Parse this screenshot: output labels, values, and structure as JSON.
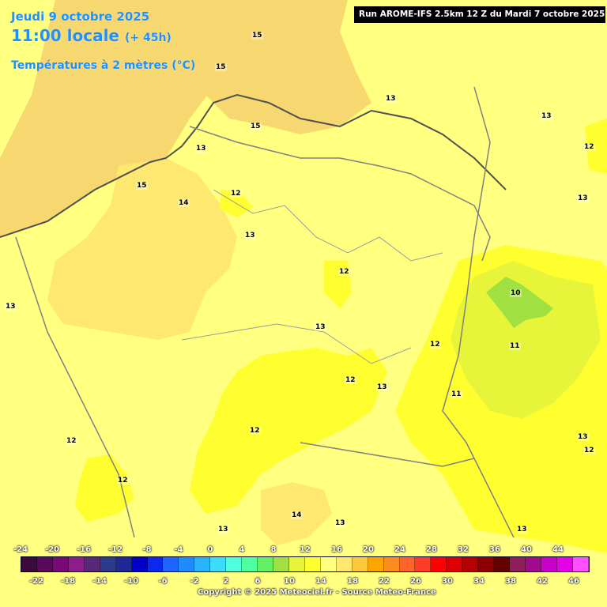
{
  "header": {
    "date": "Jeudi 9 octobre 2025",
    "time": "11:00 locale",
    "offset": "(+ 45h)",
    "parameter": "Températures à 2 mètres (°C)"
  },
  "run_info": "Run AROME-IFS 2.5km 12 Z du Mardi 7 octobre 2025",
  "copyright": "Copyright © 2025 Meteociel.fr - Source Meteo-France",
  "colors": {
    "t10": "#a0e040",
    "t11": "#e6f53a",
    "t12": "#ffff30",
    "t13": "#ffff80",
    "t14": "#ffe870",
    "t15": "#f7d870",
    "sea": "#ffff80",
    "coast": "#505050",
    "border": "#808080"
  },
  "contour_labels": [
    {
      "text": "15",
      "id": "lbl-15-a"
    },
    {
      "text": "15",
      "id": "lbl-15-b"
    },
    {
      "text": "13",
      "id": "lbl-13-a"
    },
    {
      "text": "15",
      "id": "lbl-15-c"
    },
    {
      "text": "13",
      "id": "lbl-13-b"
    },
    {
      "text": "13",
      "id": "lbl-13-c"
    },
    {
      "text": "12",
      "id": "lbl-12-a"
    },
    {
      "text": "15",
      "id": "lbl-15-d"
    },
    {
      "text": "12",
      "id": "lbl-12-b"
    },
    {
      "text": "14",
      "id": "lbl-14-a"
    },
    {
      "text": "13",
      "id": "lbl-13-d"
    },
    {
      "text": "13",
      "id": "lbl-13-e"
    },
    {
      "text": "12",
      "id": "lbl-12-c"
    },
    {
      "text": "13",
      "id": "lbl-13-f"
    },
    {
      "text": "10",
      "id": "lbl-10-a"
    },
    {
      "text": "13",
      "id": "lbl-13-g"
    },
    {
      "text": "12",
      "id": "lbl-12-d"
    },
    {
      "text": "11",
      "id": "lbl-11-a"
    },
    {
      "text": "12",
      "id": "lbl-12-e"
    },
    {
      "text": "13",
      "id": "lbl-13-h"
    },
    {
      "text": "11",
      "id": "lbl-11-b"
    },
    {
      "text": "12",
      "id": "lbl-12-f"
    },
    {
      "text": "12",
      "id": "lbl-12-g"
    },
    {
      "text": "13",
      "id": "lbl-13-i"
    },
    {
      "text": "12",
      "id": "lbl-12-h"
    },
    {
      "text": "12",
      "id": "lbl-12-i"
    },
    {
      "text": "14",
      "id": "lbl-14-b"
    },
    {
      "text": "13",
      "id": "lbl-13-j"
    },
    {
      "text": "13",
      "id": "lbl-13-k"
    },
    {
      "text": "13",
      "id": "lbl-13-l"
    }
  ],
  "legend": {
    "colors": [
      "#3c0a3c",
      "#5a0a5a",
      "#780a78",
      "#8c1e8c",
      "#5a2878",
      "#2c3c8c",
      "#1e2896",
      "#0000c8",
      "#0a28f0",
      "#1e64ff",
      "#1e8cff",
      "#28b4ff",
      "#3cdcff",
      "#50ffdc",
      "#50ffa0",
      "#64f064",
      "#a0e040",
      "#e6f53a",
      "#ffff30",
      "#ffff80",
      "#ffe870",
      "#ffc83c",
      "#ffa500",
      "#ff8c1e",
      "#ff6428",
      "#ff3c28",
      "#ff0000",
      "#dc0000",
      "#b40000",
      "#8c0000",
      "#640000",
      "#8c1e5a",
      "#a00a8c",
      "#c800c8",
      "#e600e6",
      "#ff50ff"
    ],
    "labels_top": [
      "-24",
      "-20",
      "-16",
      "-12",
      "-8",
      "-4",
      "0",
      "4",
      "8",
      "12",
      "16",
      "20",
      "24",
      "28",
      "32",
      "36",
      "40",
      "44"
    ],
    "labels_bottom": [
      "-22",
      "-18",
      "-14",
      "-10",
      "-6",
      "-2",
      "2",
      "6",
      "10",
      "14",
      "18",
      "22",
      "26",
      "30",
      "34",
      "38",
      "42",
      "46"
    ]
  }
}
